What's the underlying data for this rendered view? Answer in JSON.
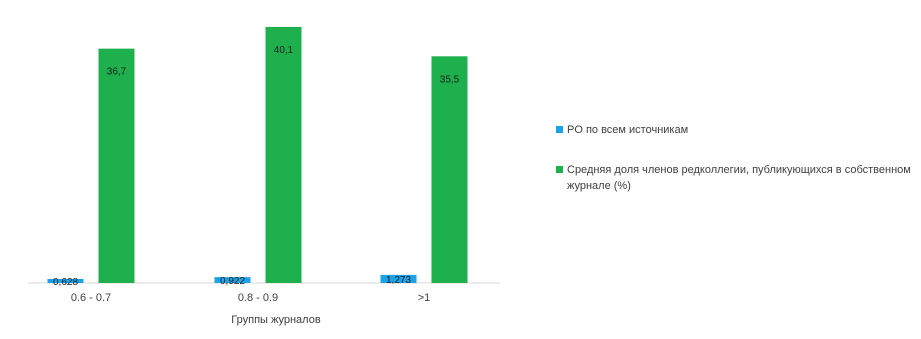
{
  "chart_data": {
    "type": "bar",
    "categories": [
      "0.6 - 0.7",
      "0.8 - 0.9",
      ">1"
    ],
    "xlabel": "Группы журналов",
    "ylabel": "",
    "series": [
      {
        "name": "PO по всем источникам",
        "values": [
          0.628,
          0.922,
          1.273
        ],
        "labels": [
          "0,628",
          "0,922",
          "1,273"
        ],
        "color": "#1aa3e8"
      },
      {
        "name": "Средняя доля членов редколлегии, публикующихся в собственном журнале (%)",
        "values": [
          36.7,
          40.1,
          35.5
        ],
        "labels": [
          "36,7",
          "40,1",
          "35,5"
        ],
        "color": "#1db04d"
      }
    ],
    "ylim": [
      0,
      41.5
    ],
    "grid": false,
    "legend_position": "right"
  }
}
